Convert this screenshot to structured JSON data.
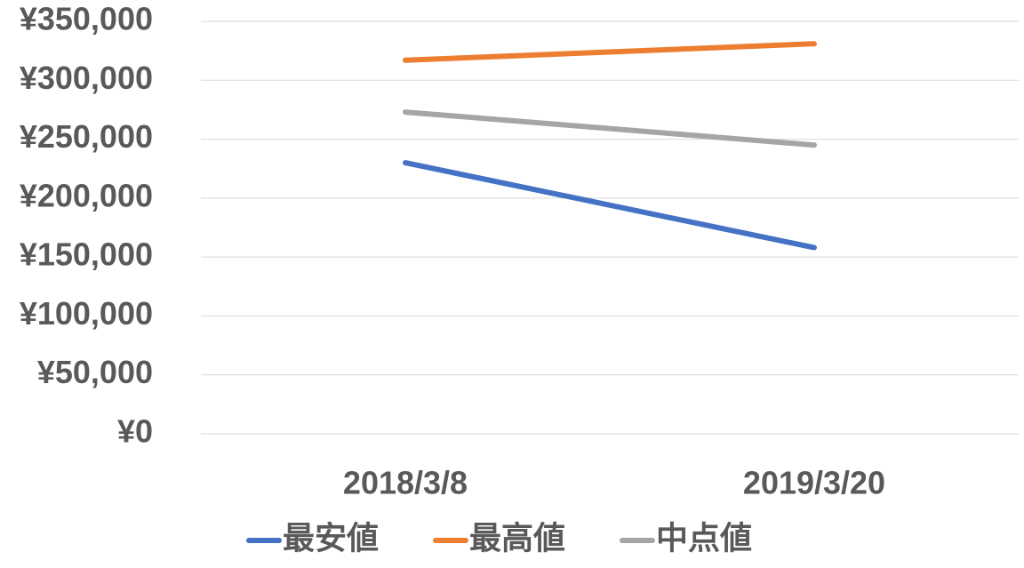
{
  "chart_data": {
    "type": "line",
    "categories": [
      "2018/3/8",
      "2019/3/20"
    ],
    "series": [
      {
        "name": "最安値",
        "color": "#4472c4",
        "values": [
          230000,
          158000
        ]
      },
      {
        "name": "最高値",
        "color": "#ed7d31",
        "values": [
          317000,
          331000
        ]
      },
      {
        "name": "中点値",
        "color": "#a5a5a5",
        "values": [
          273000,
          245000
        ]
      }
    ],
    "ylim": [
      0,
      350000
    ],
    "yticks": [
      {
        "value": 0,
        "label": "¥0"
      },
      {
        "value": 50000,
        "label": "¥50,000"
      },
      {
        "value": 100000,
        "label": "¥100,000"
      },
      {
        "value": 150000,
        "label": "¥150,000"
      },
      {
        "value": 200000,
        "label": "¥200,000"
      },
      {
        "value": 250000,
        "label": "¥250,000"
      },
      {
        "value": 300000,
        "label": "¥300,000"
      },
      {
        "value": 350000,
        "label": "¥350,000"
      }
    ],
    "grid": true,
    "legend": "bottom"
  }
}
